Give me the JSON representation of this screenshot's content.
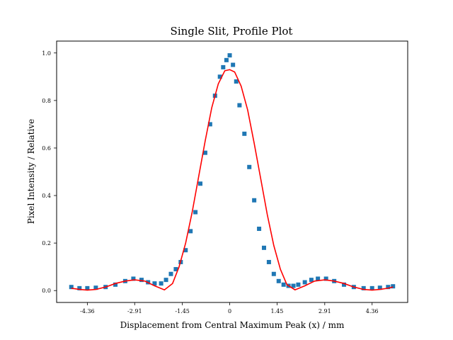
{
  "chart_data": {
    "type": "scatter",
    "title": "Single Slit, Profile Plot",
    "xlabel": "Displacement from Central Maximum Peak (x) / mm",
    "ylabel": "Pixel Intensity / Relative",
    "xlim": [
      -5.3,
      5.45
    ],
    "ylim": [
      -0.05,
      1.05
    ],
    "x_ticks": [
      {
        "value": -4.36,
        "label": "-4.36"
      },
      {
        "value": -2.91,
        "label": "-2.91"
      },
      {
        "value": -1.45,
        "label": "-1.45"
      },
      {
        "value": 0,
        "label": "0"
      },
      {
        "value": 1.45,
        "label": "1.45"
      },
      {
        "value": 2.91,
        "label": "2.91"
      },
      {
        "value": 4.36,
        "label": "4.36"
      }
    ],
    "y_ticks": [
      {
        "value": 0.0,
        "label": "0.0"
      },
      {
        "value": 0.2,
        "label": "0.2"
      },
      {
        "value": 0.4,
        "label": "0.4"
      },
      {
        "value": 0.6,
        "label": "0.6"
      },
      {
        "value": 0.8,
        "label": "0.8"
      },
      {
        "value": 1.0,
        "label": "1.0"
      }
    ],
    "grid": false,
    "legend": "none",
    "series": [
      {
        "kind": "scatter",
        "color": "#1f77b4",
        "x": [
          -4.85,
          -4.6,
          -4.36,
          -4.1,
          -3.8,
          -3.5,
          -3.2,
          -2.95,
          -2.7,
          -2.5,
          -2.3,
          -2.1,
          -1.95,
          -1.8,
          -1.65,
          -1.5,
          -1.35,
          -1.2,
          -1.05,
          -0.9,
          -0.75,
          -0.6,
          -0.45,
          -0.3,
          -0.2,
          -0.1,
          0.0,
          0.1,
          0.2,
          0.3,
          0.45,
          0.6,
          0.75,
          0.9,
          1.05,
          1.2,
          1.35,
          1.5,
          1.65,
          1.8,
          1.95,
          2.1,
          2.3,
          2.5,
          2.7,
          2.95,
          3.2,
          3.5,
          3.8,
          4.1,
          4.36,
          4.6,
          4.85,
          5.0
        ],
        "y": [
          0.015,
          0.01,
          0.01,
          0.012,
          0.015,
          0.025,
          0.04,
          0.05,
          0.045,
          0.035,
          0.03,
          0.03,
          0.045,
          0.07,
          0.09,
          0.12,
          0.17,
          0.25,
          0.33,
          0.45,
          0.58,
          0.7,
          0.82,
          0.9,
          0.94,
          0.97,
          0.99,
          0.95,
          0.88,
          0.78,
          0.66,
          0.52,
          0.38,
          0.26,
          0.18,
          0.12,
          0.07,
          0.04,
          0.025,
          0.02,
          0.02,
          0.025,
          0.035,
          0.045,
          0.05,
          0.05,
          0.04,
          0.025,
          0.015,
          0.01,
          0.01,
          0.012,
          0.015,
          0.018
        ]
      },
      {
        "kind": "line",
        "color": "#ff0000",
        "x": [
          -4.85,
          -4.6,
          -4.36,
          -4.1,
          -3.8,
          -3.5,
          -3.2,
          -2.91,
          -2.6,
          -2.3,
          -2.0,
          -1.75,
          -1.55,
          -1.35,
          -1.15,
          -0.95,
          -0.75,
          -0.55,
          -0.35,
          -0.15,
          0.0,
          0.15,
          0.35,
          0.55,
          0.75,
          0.95,
          1.15,
          1.35,
          1.55,
          1.75,
          2.0,
          2.3,
          2.6,
          2.91,
          3.2,
          3.5,
          3.8,
          4.1,
          4.36,
          4.6,
          4.85,
          5.0
        ],
        "y": [
          0.01,
          0.005,
          0.002,
          0.005,
          0.015,
          0.03,
          0.04,
          0.045,
          0.04,
          0.02,
          0.003,
          0.03,
          0.1,
          0.2,
          0.33,
          0.48,
          0.63,
          0.77,
          0.87,
          0.925,
          0.93,
          0.92,
          0.86,
          0.76,
          0.62,
          0.47,
          0.32,
          0.19,
          0.09,
          0.025,
          0.003,
          0.02,
          0.04,
          0.045,
          0.04,
          0.03,
          0.015,
          0.005,
          0.002,
          0.005,
          0.01,
          0.015
        ]
      }
    ]
  }
}
